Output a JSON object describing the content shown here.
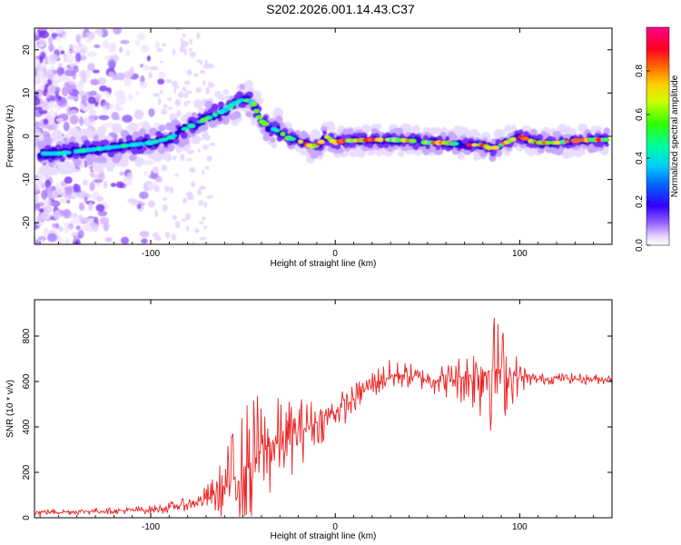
{
  "title": "S202.2026.001.14.43.C37",
  "colors": {
    "snr_line": "#ee2222",
    "frame": "#000000",
    "track": "#3300cc"
  },
  "chart_data": [
    {
      "type": "heatmap",
      "name": "spectrogram",
      "xlabel": "Height of straight line (km)",
      "ylabel": "Frequency (Hz)",
      "xlim": [
        -163,
        150
      ],
      "ylim": [
        -25,
        25
      ],
      "xticks": [
        -100,
        0,
        100
      ],
      "yticks": [
        -20,
        -10,
        0,
        10,
        20
      ],
      "colorbar": {
        "label": "Normalized spectral amplitude",
        "range": [
          0,
          1
        ],
        "ticks": [
          "0.0",
          "0.2",
          "0.4",
          "0.6",
          "0.8"
        ],
        "tick_values": [
          0.0,
          0.2,
          0.4,
          0.6,
          0.8
        ]
      },
      "ridge": {
        "x": [
          -160,
          -150,
          -140,
          -130,
          -120,
          -110,
          -100,
          -90,
          -80,
          -70,
          -60,
          -55,
          -50,
          -45,
          -42,
          -40,
          -35,
          -30,
          -25,
          -20,
          -15,
          -12,
          -8,
          -5,
          0,
          5,
          10,
          20,
          30,
          40,
          50,
          60,
          70,
          80,
          85,
          90,
          95,
          100,
          105,
          110,
          120,
          130,
          140,
          148
        ],
        "y": [
          -4,
          -4,
          -3.5,
          -3,
          -2.5,
          -2,
          -1.5,
          -0.5,
          2,
          4,
          6,
          7.5,
          8.5,
          8,
          5,
          3.5,
          2,
          1,
          -0.5,
          -1,
          -2,
          -2.5,
          -1.5,
          0,
          -1.5,
          -1,
          -1,
          -0.8,
          -0.8,
          -1,
          -1.5,
          -1.5,
          -2,
          -2,
          -3,
          -2,
          -1,
          0,
          -1,
          -1.5,
          -1.5,
          -1,
          -0.8,
          -0.8
        ]
      }
    },
    {
      "type": "line",
      "name": "snr",
      "xlabel": "Height of straight line (km)",
      "ylabel": "SNR (10 * v/v)",
      "xlim": [
        -163,
        150
      ],
      "ylim": [
        0,
        960
      ],
      "xticks": [
        -100,
        0,
        100
      ],
      "yticks": [
        0,
        200,
        400,
        600,
        800
      ],
      "series": [
        {
          "name": "SNR",
          "x": [
            -163,
            -150,
            -140,
            -120,
            -100,
            -90,
            -80,
            -75,
            -70,
            -65,
            -60,
            -55,
            -50,
            -45,
            -40,
            -35,
            -30,
            -25,
            -20,
            -15,
            -10,
            -5,
            0,
            5,
            10,
            15,
            20,
            25,
            30,
            35,
            40,
            50,
            60,
            70,
            75,
            80,
            85,
            90,
            95,
            100,
            105,
            110,
            120,
            130,
            140,
            150
          ],
          "values": [
            25,
            25,
            28,
            30,
            35,
            45,
            60,
            70,
            85,
            100,
            130,
            170,
            210,
            250,
            290,
            320,
            330,
            350,
            380,
            400,
            420,
            440,
            470,
            490,
            520,
            560,
            590,
            610,
            620,
            630,
            625,
            610,
            605,
            620,
            630,
            640,
            650,
            640,
            630,
            620,
            615,
            610,
            615,
            612,
            610,
            612
          ],
          "noise_amp": [
            15,
            15,
            15,
            15,
            20,
            25,
            30,
            40,
            60,
            100,
            160,
            250,
            300,
            300,
            280,
            250,
            200,
            180,
            160,
            140,
            110,
            100,
            80,
            80,
            70,
            70,
            75,
            80,
            80,
            70,
            60,
            60,
            80,
            130,
            180,
            250,
            280,
            250,
            150,
            80,
            40,
            30,
            25,
            25,
            25,
            25
          ]
        }
      ]
    }
  ]
}
